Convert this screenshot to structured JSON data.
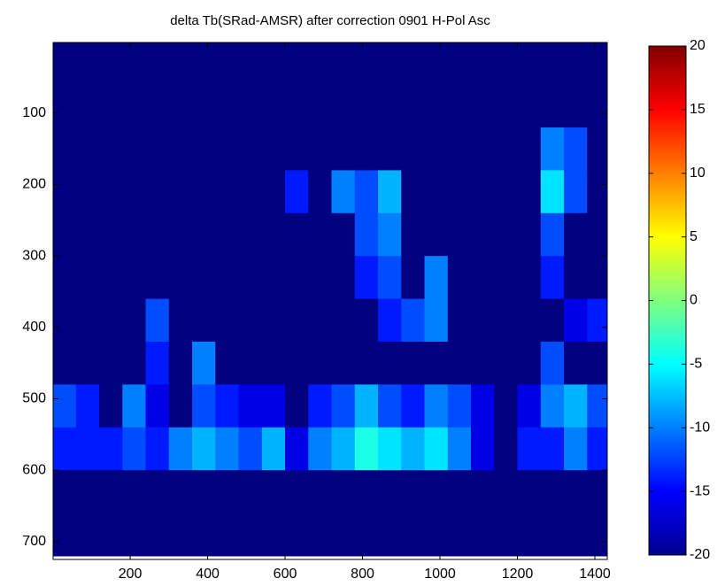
{
  "chart_data": {
    "type": "heatmap",
    "title": "delta Tb(SRad-AMSR) after correction 0901 H-Pol Asc",
    "colormap": "jet",
    "x": [
      30,
      90,
      150,
      210,
      270,
      330,
      390,
      450,
      510,
      570,
      630,
      690,
      750,
      810,
      870,
      930,
      990,
      1050,
      1110,
      1170,
      1230,
      1290,
      1350,
      1410
    ],
    "y": [
      30,
      90,
      150,
      210,
      270,
      330,
      390,
      450,
      510,
      570,
      630,
      690
    ],
    "z": [
      [
        -20,
        -20,
        -20,
        -20,
        -20,
        -20,
        -20,
        -20,
        -20,
        -20,
        -20,
        -20,
        -20,
        -20,
        -20,
        -20,
        -20,
        -20,
        -20,
        -20,
        -20,
        -20,
        -20,
        -20
      ],
      [
        -20,
        -20,
        -20,
        -20,
        -20,
        -20,
        -20,
        -20,
        -20,
        -20,
        -20,
        -20,
        -20,
        -20,
        -20,
        -20,
        -20,
        -20,
        -20,
        -20,
        -20,
        -20,
        -20,
        -20
      ],
      [
        -20,
        -20,
        -20,
        -20,
        -20,
        -20,
        -20,
        -20,
        -20,
        -20,
        -20,
        -20,
        -20,
        -20,
        -20,
        -20,
        -20,
        -20,
        -20,
        -20,
        -20,
        -10,
        -12,
        -20
      ],
      [
        -20,
        -20,
        -20,
        -20,
        -20,
        -20,
        -20,
        -20,
        -20,
        -20,
        -14,
        -20,
        -10,
        -12,
        -8,
        -20,
        -20,
        -20,
        -20,
        -20,
        -20,
        -6,
        -12,
        -20
      ],
      [
        -20,
        -20,
        -20,
        -20,
        -20,
        -20,
        -20,
        -20,
        -20,
        -20,
        -20,
        -20,
        -20,
        -12,
        -10,
        -20,
        -20,
        -20,
        -20,
        -20,
        -20,
        -12,
        -20,
        -20
      ],
      [
        -20,
        -20,
        -20,
        -20,
        -20,
        -20,
        -20,
        -20,
        -20,
        -20,
        -20,
        -20,
        -20,
        -14,
        -12,
        -20,
        -10,
        -20,
        -20,
        -20,
        -20,
        -14,
        -20,
        -20
      ],
      [
        -20,
        -20,
        -20,
        -20,
        -12,
        -20,
        -20,
        -20,
        -20,
        -20,
        -20,
        -20,
        -20,
        -20,
        -14,
        -12,
        -10,
        -20,
        -20,
        -20,
        -20,
        -20,
        -16,
        -14
      ],
      [
        -20,
        -20,
        -20,
        -20,
        -14,
        -20,
        -10,
        -20,
        -20,
        -20,
        -20,
        -20,
        -20,
        -20,
        -20,
        -20,
        -20,
        -20,
        -20,
        -20,
        -20,
        -12,
        -20,
        -20
      ],
      [
        -12,
        -14,
        -20,
        -10,
        -16,
        -20,
        -12,
        -14,
        -16,
        -16,
        -20,
        -14,
        -12,
        -8,
        -12,
        -14,
        -10,
        -12,
        -16,
        -20,
        -16,
        -10,
        -8,
        -12
      ],
      [
        -14,
        -14,
        -14,
        -12,
        -14,
        -10,
        -8,
        -10,
        -12,
        -8,
        -16,
        -10,
        -8,
        -4,
        -6,
        -8,
        -6,
        -10,
        -16,
        -20,
        -14,
        -14,
        -10,
        -14
      ],
      [
        -20,
        -20,
        -20,
        -20,
        -20,
        -20,
        -20,
        -20,
        -20,
        -20,
        -20,
        -20,
        -20,
        -20,
        -20,
        -20,
        -20,
        -20,
        -20,
        -20,
        -20,
        -20,
        -20,
        -20
      ],
      [
        -20,
        -20,
        -20,
        -20,
        -20,
        -20,
        -20,
        -20,
        -20,
        -20,
        -20,
        -20,
        -20,
        -20,
        -20,
        -20,
        -20,
        -20,
        -20,
        -20,
        -20,
        -20,
        -20,
        -20
      ]
    ],
    "xlim": [
      1,
      1432
    ],
    "ylim": [
      1,
      725
    ],
    "y_reversed": true,
    "xticks": [
      200,
      400,
      600,
      800,
      1000,
      1200,
      1400
    ],
    "yticks": [
      100,
      200,
      300,
      400,
      500,
      600,
      700
    ],
    "clim": [
      -20,
      20
    ],
    "cticks": [
      -20,
      -15,
      -10,
      -5,
      0,
      5,
      10,
      15,
      20
    ]
  }
}
